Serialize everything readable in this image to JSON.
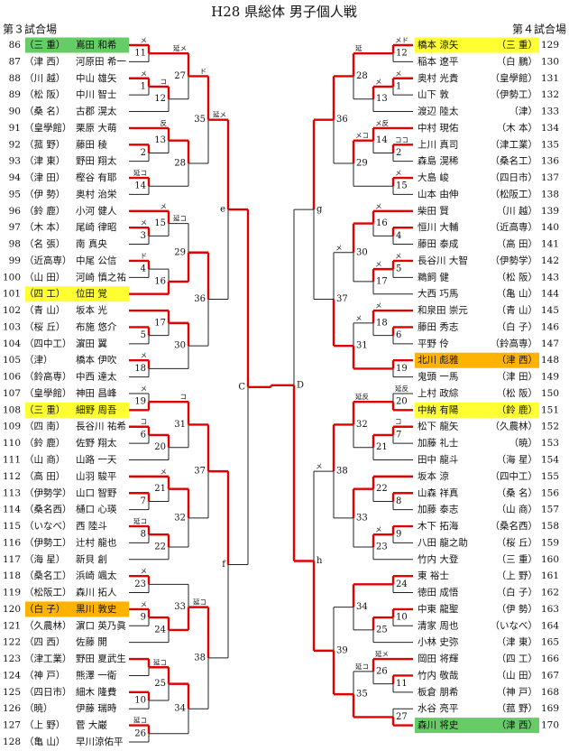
{
  "title": "H28 県総体 男子個人戦",
  "left": {
    "header": "第３試合場",
    "players": [
      {
        "num": 86,
        "school": "（三 重）",
        "name": "嶌田 和希",
        "highlight": "#66cc66"
      },
      {
        "num": 87,
        "school": "（津 西）",
        "name": "河原田 希一"
      },
      {
        "num": 88,
        "school": "（川 越）",
        "name": "中山 雄矢"
      },
      {
        "num": 89,
        "school": "（松 阪）",
        "name": "中川 智士"
      },
      {
        "num": 90,
        "school": "（桑 名）",
        "name": "古郡 滉太"
      },
      {
        "num": 91,
        "school": "（皇學館）",
        "name": "栗原 大萌"
      },
      {
        "num": 92,
        "school": "（菰 野）",
        "name": "藤田 稜"
      },
      {
        "num": 93,
        "school": "（津 東）",
        "name": "野田 翔太"
      },
      {
        "num": 94,
        "school": "（津 田）",
        "name": "樫谷 有耶"
      },
      {
        "num": 95,
        "school": "（伊 勢）",
        "name": "奥村 治栄"
      },
      {
        "num": 96,
        "school": "（鈴 鹿）",
        "name": "小河 健人"
      },
      {
        "num": 97,
        "school": "（木 本）",
        "name": "尾崎 律昭"
      },
      {
        "num": 98,
        "school": "（名 張）",
        "name": "南 真央"
      },
      {
        "num": 99,
        "school": "（近高専）",
        "name": "中尾 公信"
      },
      {
        "num": 100,
        "school": "（山 田）",
        "name": "河崎 慎之祐"
      },
      {
        "num": 101,
        "school": "（四 工）",
        "name": "位田 覚",
        "highlight": "#ffff33"
      },
      {
        "num": 102,
        "school": "（青 山）",
        "name": "坂本 光"
      },
      {
        "num": 103,
        "school": "（桜 丘）",
        "name": "布施 悠介"
      },
      {
        "num": 104,
        "school": "（四中工）",
        "name": "濵田 翼"
      },
      {
        "num": 105,
        "school": "（津）",
        "name": "橋本 伊吹"
      },
      {
        "num": 106,
        "school": "（鈴高専）",
        "name": "中西 達太"
      },
      {
        "num": 107,
        "school": "（皇學館）",
        "name": "神田 昌峰"
      },
      {
        "num": 108,
        "school": "（三 重）",
        "name": "細野 周吾",
        "highlight": "#ffff33"
      },
      {
        "num": 109,
        "school": "（四 南）",
        "name": "長谷川 祐希"
      },
      {
        "num": 110,
        "school": "（鈴 鹿）",
        "name": "佐野 翔太"
      },
      {
        "num": 111,
        "school": "（山 商）",
        "name": "山路 一天"
      },
      {
        "num": 112,
        "school": "（高 田）",
        "name": "山羽 駿平"
      },
      {
        "num": 113,
        "school": "（伊勢学）",
        "name": "山口 智野"
      },
      {
        "num": 114,
        "school": "（桑名西）",
        "name": "樋口 心瑛"
      },
      {
        "num": 115,
        "school": "（いなべ）",
        "name": "西 陸斗"
      },
      {
        "num": 116,
        "school": "（伊勢工）",
        "name": "辻村 龍也"
      },
      {
        "num": 117,
        "school": "（海 星）",
        "name": "新貝 創"
      },
      {
        "num": 118,
        "school": "（桑名工）",
        "name": "浜崎 颯太"
      },
      {
        "num": 119,
        "school": "（松阪工）",
        "name": "森川 拓人"
      },
      {
        "num": 120,
        "school": "（白 子）",
        "name": "黒川 敦史",
        "highlight": "#ffb300"
      },
      {
        "num": 121,
        "school": "（久農林）",
        "name": "濵口 英乃眞"
      },
      {
        "num": 122,
        "school": "（四 西）",
        "name": "佐藤 開"
      },
      {
        "num": 123,
        "school": "（津工業）",
        "name": "野田 夏武生"
      },
      {
        "num": 124,
        "school": "（神 戸）",
        "name": "熊澤 一衛"
      },
      {
        "num": 125,
        "school": "（四日市）",
        "name": "細木 隆費"
      },
      {
        "num": 126,
        "school": "（暁）",
        "name": "伊藤 瑞時"
      },
      {
        "num": 127,
        "school": "（上 野）",
        "name": "菅 大巌"
      },
      {
        "num": 128,
        "school": "（亀 山）",
        "name": "早川涼佑平"
      }
    ],
    "matches": [
      {
        "label": "11",
        "note": "メ"
      },
      {
        "label": "1",
        "note": "メ"
      },
      {
        "label": "12",
        "note": "コ"
      },
      {
        "label": "27",
        "note": "延メ"
      },
      {
        "label": "2"
      },
      {
        "label": "13",
        "note": "反"
      },
      {
        "label": "14",
        "note": "延コ"
      },
      {
        "label": "28"
      },
      {
        "label": "35",
        "note": "ド"
      },
      {
        "label": "3",
        "note": "メ"
      },
      {
        "label": "15",
        "note": "メ"
      },
      {
        "label": "4",
        "note": "ド"
      },
      {
        "label": "16"
      },
      {
        "label": "29",
        "note": "延コ"
      },
      {
        "label": "5"
      },
      {
        "label": "17"
      },
      {
        "label": "18",
        "note": "メ"
      },
      {
        "label": "30"
      },
      {
        "label": "36"
      },
      {
        "label": "e",
        "note": "延メ"
      },
      {
        "label": "19",
        "note": "メ"
      },
      {
        "label": "6",
        "note": "コ"
      },
      {
        "label": "20"
      },
      {
        "label": "31",
        "note": "コ"
      },
      {
        "label": "7"
      },
      {
        "label": "21",
        "note": "メ"
      },
      {
        "label": "8",
        "note": "延コ"
      },
      {
        "label": "22"
      },
      {
        "label": "32"
      },
      {
        "label": "37"
      },
      {
        "label": "23",
        "note": "メ"
      },
      {
        "label": "9",
        "note": "メ"
      },
      {
        "label": "24"
      },
      {
        "label": "33"
      },
      {
        "label": "10"
      },
      {
        "label": "25",
        "note": "延コ"
      },
      {
        "label": "26",
        "note": "延コ"
      },
      {
        "label": "34"
      },
      {
        "label": "38",
        "note": "延コ"
      },
      {
        "label": "f"
      },
      {
        "label": "C"
      }
    ]
  },
  "right": {
    "header": "第４試合場",
    "players": [
      {
        "name": "橋本 涼矢",
        "school": "（三 重）",
        "num": 129,
        "highlight": "#ffff33"
      },
      {
        "name": "稲本 遼平",
        "school": "（白 鵬）",
        "num": 130
      },
      {
        "name": "奥村 光貴",
        "school": "（皇學館）",
        "num": 131
      },
      {
        "name": "山下 敦",
        "school": "（伊勢工）",
        "num": 132
      },
      {
        "name": "渡辺 陸太",
        "school": "（津）",
        "num": 133
      },
      {
        "name": "中村 現佑",
        "school": "（木 本）",
        "num": 134
      },
      {
        "name": "上川 真司",
        "school": "（津工業）",
        "num": 135
      },
      {
        "name": "森島 滉稀",
        "school": "（桑名工）",
        "num": 136
      },
      {
        "name": "大島 峻",
        "school": "（四日市）",
        "num": 137
      },
      {
        "name": "山本 由伸",
        "school": "（松阪工）",
        "num": 138
      },
      {
        "name": "柴田 賢",
        "school": "（川 越）",
        "num": 139
      },
      {
        "name": "恒川 大輔",
        "school": "（近高専）",
        "num": 140
      },
      {
        "name": "藤田 泰成",
        "school": "（高 田）",
        "num": 141
      },
      {
        "name": "長谷川 大智",
        "school": "（伊勢学）",
        "num": 142
      },
      {
        "name": "鵜飼 健",
        "school": "（松 阪）",
        "num": 143
      },
      {
        "name": "大西 巧馬",
        "school": "（亀 山）",
        "num": 144
      },
      {
        "name": "和泉田 崇元",
        "school": "（青 山）",
        "num": 145
      },
      {
        "name": "藤田 秀志",
        "school": "（白 子）",
        "num": 146
      },
      {
        "name": "平野 伶",
        "school": "（鈴高専）",
        "num": 147
      },
      {
        "name": "北川 彪雅",
        "school": "（津 西）",
        "num": 148,
        "highlight": "#ffb300"
      },
      {
        "name": "鬼頭 一馬",
        "school": "（津 田）",
        "num": 149
      },
      {
        "name": "上村 政綜",
        "school": "（松 阪）",
        "num": 150
      },
      {
        "name": "中納 有陽",
        "school": "（鈴 鹿）",
        "num": 151,
        "highlight": "#ffff33"
      },
      {
        "name": "松下 龍矢",
        "school": "（久農林）",
        "num": 152
      },
      {
        "name": "加藤 礼士",
        "school": "（暁）",
        "num": 153
      },
      {
        "name": "田中 龍斗",
        "school": "（海 星）",
        "num": 154
      },
      {
        "name": "坂本 涼",
        "school": "（四中工）",
        "num": 155
      },
      {
        "name": "山森 祥真",
        "school": "（桑 名）",
        "num": 156
      },
      {
        "name": "加藤 泰志",
        "school": "（山 商）",
        "num": 157
      },
      {
        "name": "木下 拓海",
        "school": "（桑名西）",
        "num": 158
      },
      {
        "name": "八田 龍之助",
        "school": "（桜 丘）",
        "num": 159
      },
      {
        "name": "竹内 大登",
        "school": "（三 重）",
        "num": 160
      },
      {
        "name": "東 裕士",
        "school": "（上 野）",
        "num": 161
      },
      {
        "name": "徳田 成悟",
        "school": "（白 子）",
        "num": 162
      },
      {
        "name": "中東 龍聖",
        "school": "（伊 勢）",
        "num": 163
      },
      {
        "name": "清家 周也",
        "school": "（いなべ）",
        "num": 164
      },
      {
        "name": "小林 史弥",
        "school": "（津 東）",
        "num": 165
      },
      {
        "name": "岡田 将輝",
        "school": "（四 工）",
        "num": 166
      },
      {
        "name": "竹内 敬哉",
        "school": "（山 田）",
        "num": 167
      },
      {
        "name": "板倉 朋希",
        "school": "（神 戸）",
        "num": 168
      },
      {
        "name": "水谷 亮平",
        "school": "（菰 野）",
        "num": 169
      },
      {
        "name": "森川 将史",
        "school": "（津 西）",
        "num": 170,
        "highlight": "#66cc66"
      }
    ],
    "matches": [
      {
        "label": "12",
        "note": "メド"
      },
      {
        "label": "1",
        "note": "メ"
      },
      {
        "label": "13",
        "note": "メ"
      },
      {
        "label": "28",
        "note": "延"
      },
      {
        "label": "2",
        "note": "ココ"
      },
      {
        "label": "14",
        "note": "メ反"
      },
      {
        "label": "15",
        "note": "メ"
      },
      {
        "label": "29",
        "note": "メコ"
      },
      {
        "label": "36"
      },
      {
        "label": "4"
      },
      {
        "label": "16",
        "note": "メ"
      },
      {
        "label": "5",
        "note": "メ"
      },
      {
        "label": "17",
        "note": "メ"
      },
      {
        "label": "30"
      },
      {
        "label": "6"
      },
      {
        "label": "18",
        "note": "メ"
      },
      {
        "label": "19"
      },
      {
        "label": "31",
        "note": "メ"
      },
      {
        "label": "37",
        "note": "メ"
      },
      {
        "label": "g"
      },
      {
        "label": "20",
        "note": "延反"
      },
      {
        "label": "7",
        "note": "コ"
      },
      {
        "label": "21"
      },
      {
        "label": "32",
        "note": "延反"
      },
      {
        "label": "8"
      },
      {
        "label": "22"
      },
      {
        "label": "9"
      },
      {
        "label": "23",
        "note": "メ"
      },
      {
        "label": "33"
      },
      {
        "label": "38"
      },
      {
        "label": "24"
      },
      {
        "label": "10"
      },
      {
        "label": "25"
      },
      {
        "label": "34"
      },
      {
        "label": "11"
      },
      {
        "label": "26",
        "note": "延メ"
      },
      {
        "label": "27"
      },
      {
        "label": "35",
        "note": "延コ"
      },
      {
        "label": "39"
      },
      {
        "label": "h",
        "note": "メ"
      },
      {
        "label": "D"
      }
    ]
  }
}
